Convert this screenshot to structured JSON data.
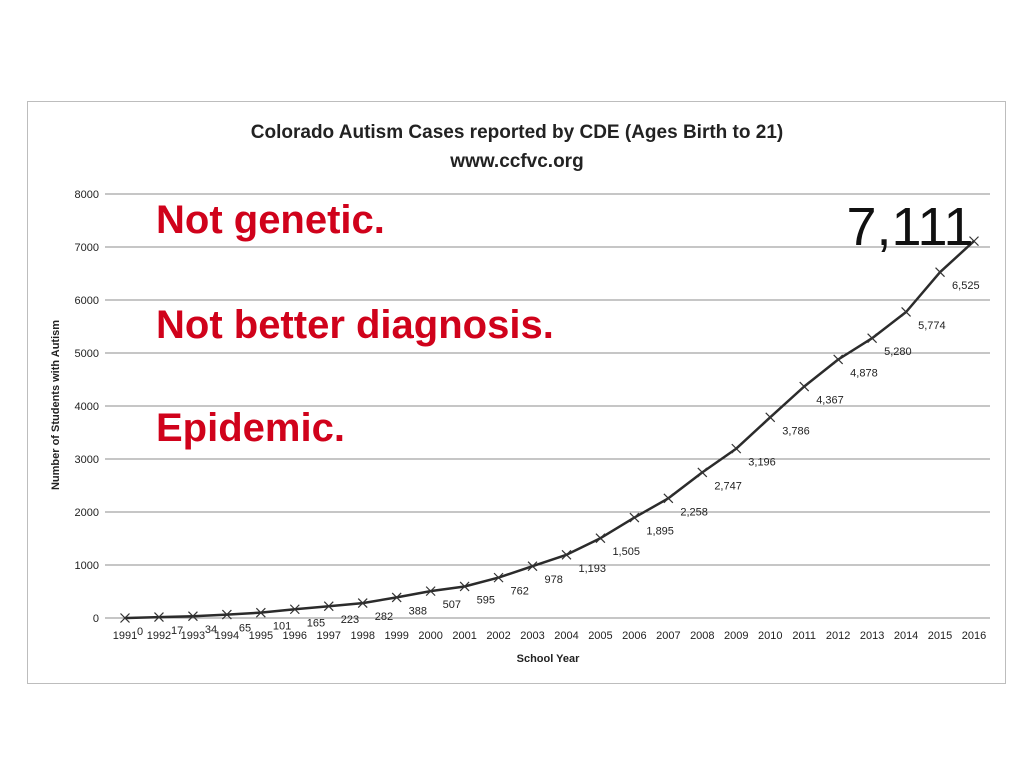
{
  "chart_data": {
    "type": "line",
    "title": "Colorado Autism Cases reported by CDE (Ages Birth to 21)",
    "subtitle": "www.ccfvc.org",
    "xlabel": "School Year",
    "ylabel": "Number of Students with Autism",
    "x": [
      "1991",
      "1992",
      "1993",
      "1994",
      "1995",
      "1996",
      "1997",
      "1998",
      "1999",
      "2000",
      "2001",
      "2002",
      "2003",
      "2004",
      "2005",
      "2006",
      "2007",
      "2008",
      "2009",
      "2010",
      "2011",
      "2012",
      "2013",
      "2014",
      "2015",
      "2016"
    ],
    "values": [
      0,
      17,
      34,
      65,
      101,
      165,
      223,
      282,
      388,
      507,
      595,
      762,
      978,
      1193,
      1505,
      1895,
      2258,
      2747,
      3196,
      3786,
      4367,
      4878,
      5280,
      5774,
      6525,
      7111
    ],
    "data_labels": [
      "0",
      "17",
      "34",
      "65",
      "101",
      "165",
      "223",
      "282",
      "388",
      "507",
      "595",
      "762",
      "978",
      "1,193",
      "1,505",
      "1,895",
      "2,258",
      "2,747",
      "3,196",
      "3,786",
      "4,367",
      "4,878",
      "5,280",
      "5,774",
      "6,525",
      ""
    ],
    "ylim": [
      0,
      8000
    ],
    "yticks": [
      0,
      1000,
      2000,
      3000,
      4000,
      5000,
      6000,
      7000,
      8000
    ],
    "grid": true,
    "legend": "none",
    "line_color": "#2b2b2b",
    "grid_color": "#8c8c8c",
    "big_label": "7,111",
    "annotations": [
      "Not genetic.",
      "Not better diagnosis.",
      "Epidemic."
    ],
    "annotation_color": "#d0021b"
  }
}
